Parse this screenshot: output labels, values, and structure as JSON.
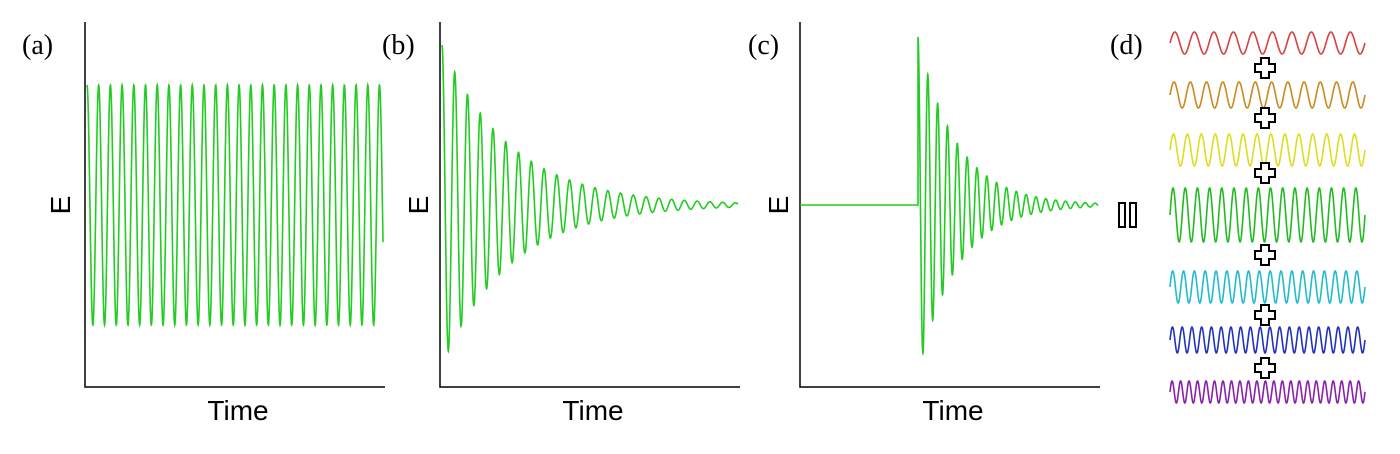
{
  "panels": [
    {
      "label": "(a)",
      "y_label": "E",
      "x_label": "Time"
    },
    {
      "label": "(b)",
      "y_label": "E",
      "x_label": "Time"
    },
    {
      "label": "(c)",
      "y_label": "E",
      "x_label": "Time"
    },
    {
      "label": "(d)"
    }
  ]
}
